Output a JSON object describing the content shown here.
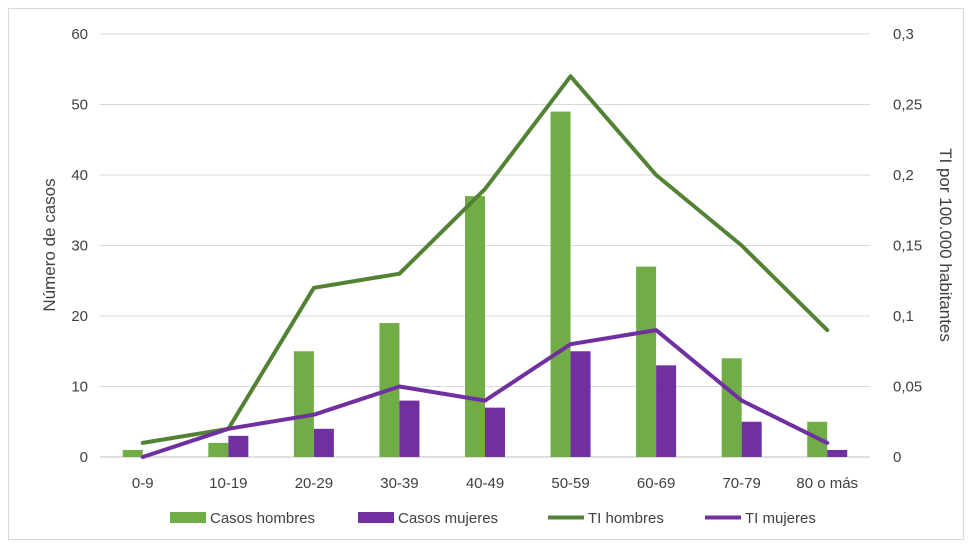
{
  "chart_data": {
    "type": "bar",
    "categories": [
      "0-9",
      "10-19",
      "20-29",
      "30-39",
      "40-49",
      "50-59",
      "60-69",
      "70-79",
      "80 o más"
    ],
    "series": [
      {
        "name": "Casos hombres",
        "kind": "bar",
        "axis": "left",
        "color": "#70ad47",
        "values": [
          1,
          2,
          15,
          19,
          37,
          49,
          27,
          14,
          5
        ]
      },
      {
        "name": "Casos mujeres",
        "kind": "bar",
        "axis": "left",
        "color": "#7030a0",
        "values": [
          0,
          3,
          4,
          8,
          7,
          15,
          13,
          5,
          1
        ]
      },
      {
        "name": "TI hombres",
        "kind": "line",
        "axis": "right",
        "color": "#548235",
        "values": [
          0.01,
          0.02,
          0.12,
          0.13,
          0.19,
          0.27,
          0.2,
          0.15,
          0.09
        ]
      },
      {
        "name": "TI mujeres",
        "kind": "line",
        "axis": "right",
        "color": "#7030a0",
        "values": [
          0,
          0.02,
          0.03,
          0.05,
          0.04,
          0.08,
          0.09,
          0.04,
          0.01
        ]
      }
    ],
    "ylabel": "Número de casos",
    "y2label": "TI por 100.000 habitantes",
    "ylim": [
      0,
      60
    ],
    "y2lim": [
      0,
      0.3
    ],
    "yticks": [
      "0",
      "10",
      "20",
      "30",
      "40",
      "50",
      "60"
    ],
    "y2ticks": [
      "0",
      "0,05",
      "0,1",
      "0,15",
      "0,2",
      "0,25",
      "0,3"
    ],
    "grid": true,
    "legend_position": "bottom"
  }
}
